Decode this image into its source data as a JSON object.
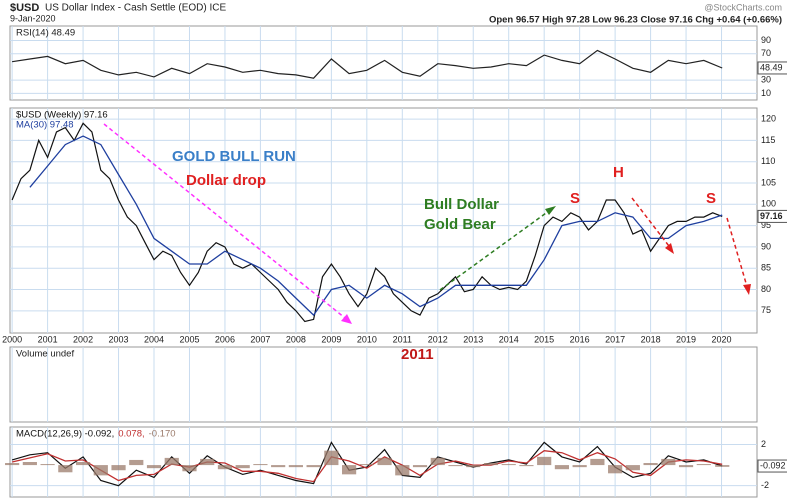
{
  "header": {
    "symbol": "$USD",
    "name": "US Dollar Index - Cash Settle (EOD) ICE",
    "date": "9-Jan-2020",
    "quote": "Open 96.57  High 97.28  Low 96.23  Close 97.16  Chg +0.64 (+0.66%)",
    "source": "@StockCharts.com"
  },
  "chart_data": [
    {
      "type": "line",
      "title": "RSI(14) 48.49",
      "ylim": [
        0,
        112
      ],
      "yticks": [
        10,
        30,
        70,
        90
      ],
      "grid": true,
      "series": [
        {
          "name": "RSI(14)",
          "color": "#222222",
          "x": [
            2000,
            2000.5,
            2001,
            2001.5,
            2002,
            2002.5,
            2003,
            2003.5,
            2004,
            2004.5,
            2005,
            2005.5,
            2006,
            2006.5,
            2007,
            2007.5,
            2008,
            2008.5,
            2009,
            2009.5,
            2010,
            2010.5,
            2011,
            2011.5,
            2012,
            2012.5,
            2013,
            2013.5,
            2014,
            2014.5,
            2015,
            2015.5,
            2016,
            2016.5,
            2017,
            2017.5,
            2018,
            2018.5,
            2019,
            2019.5,
            2020.02
          ],
          "values": [
            58,
            62,
            66,
            55,
            60,
            45,
            38,
            42,
            35,
            48,
            40,
            55,
            50,
            42,
            45,
            40,
            38,
            33,
            62,
            40,
            45,
            60,
            42,
            36,
            55,
            52,
            48,
            50,
            55,
            52,
            68,
            60,
            55,
            75,
            62,
            48,
            42,
            60,
            55,
            60,
            48.49
          ]
        }
      ]
    },
    {
      "type": "line",
      "xlim": [
        1999.94,
        2021.0
      ],
      "xticks": [
        2000,
        2001,
        2002,
        2003,
        2004,
        2005,
        2006,
        2007,
        2008,
        2009,
        2010,
        2011,
        2012,
        2013,
        2014,
        2015,
        2016,
        2017,
        2018,
        2019,
        2020
      ],
      "ylim": [
        69.8,
        122.6
      ],
      "yticks": [
        75,
        80,
        85,
        90,
        95,
        100,
        105,
        110,
        115,
        120
      ],
      "grid": true,
      "series": [
        {
          "name": "$USD (Weekly) 97.16",
          "color": "#111111",
          "x": [
            2000,
            2000.25,
            2000.5,
            2000.75,
            2001,
            2001.25,
            2001.5,
            2001.75,
            2002,
            2002.25,
            2002.5,
            2002.75,
            2003,
            2003.25,
            2003.5,
            2003.75,
            2004,
            2004.25,
            2004.5,
            2004.75,
            2005,
            2005.25,
            2005.5,
            2005.75,
            2006,
            2006.25,
            2006.5,
            2006.75,
            2007,
            2007.25,
            2007.5,
            2007.75,
            2008,
            2008.25,
            2008.5,
            2008.75,
            2009,
            2009.25,
            2009.5,
            2009.75,
            2010,
            2010.25,
            2010.5,
            2010.75,
            2011,
            2011.25,
            2011.5,
            2011.75,
            2012,
            2012.25,
            2012.5,
            2012.75,
            2013,
            2013.25,
            2013.5,
            2013.75,
            2014,
            2014.25,
            2014.5,
            2014.75,
            2015,
            2015.25,
            2015.5,
            2015.75,
            2016,
            2016.25,
            2016.5,
            2016.75,
            2017,
            2017.25,
            2017.5,
            2017.75,
            2018,
            2018.25,
            2018.5,
            2018.75,
            2019,
            2019.25,
            2019.5,
            2019.75,
            2020.02
          ],
          "values": [
            101,
            106,
            108,
            115,
            111,
            117,
            118,
            115,
            119,
            117,
            108,
            106,
            101,
            97,
            95,
            91,
            87,
            89,
            88,
            84,
            81,
            84,
            89,
            91,
            90,
            86,
            85,
            86,
            84,
            82,
            80,
            77,
            75,
            72.5,
            73,
            83,
            86,
            83,
            79,
            76,
            79,
            85,
            83,
            79,
            77,
            75,
            74,
            78,
            79,
            81,
            83,
            79.5,
            80,
            83,
            81,
            80,
            80.5,
            80,
            82,
            88,
            95,
            97,
            96,
            98,
            97,
            94,
            96,
            101,
            101,
            98,
            93,
            94,
            89,
            92,
            95,
            96,
            96,
            97,
            97,
            98,
            97.16
          ]
        },
        {
          "name": "MA(30) 97.48",
          "color": "#1f3f9f",
          "x": [
            2000.5,
            2001,
            2001.5,
            2002,
            2002.5,
            2003,
            2003.5,
            2004,
            2004.5,
            2005,
            2005.5,
            2006,
            2006.5,
            2007,
            2007.5,
            2008,
            2008.5,
            2009,
            2009.5,
            2010,
            2010.5,
            2011,
            2011.5,
            2012,
            2012.5,
            2013,
            2013.5,
            2014,
            2014.5,
            2015,
            2015.5,
            2016,
            2016.5,
            2017,
            2017.5,
            2018,
            2018.5,
            2019,
            2019.5,
            2020.02
          ],
          "values": [
            104,
            109,
            114,
            116,
            114,
            107,
            100,
            92,
            89,
            86,
            86,
            89,
            87,
            85,
            82,
            78,
            74,
            80,
            81,
            78,
            81,
            79,
            76,
            78,
            81,
            81,
            81,
            81,
            81,
            87,
            95,
            96,
            96,
            98,
            97,
            92,
            92,
            95,
            96,
            97.48
          ]
        }
      ],
      "annotations": [
        "GOLD BULL RUN",
        "Dollar drop",
        "Bull Dollar",
        "Gold Bear",
        "S",
        "H",
        "S",
        "2011"
      ]
    },
    {
      "type": "line",
      "title": "Volume undef",
      "series": []
    },
    {
      "type": "line",
      "ylim": [
        -3.1,
        3.7
      ],
      "yticks": [
        -2,
        2
      ],
      "grid": true,
      "series": [
        {
          "name": "MACD(12,26,9) -0.092,",
          "color": "#111111",
          "x": [
            2000,
            2000.5,
            2001,
            2001.5,
            2002,
            2002.5,
            2003,
            2003.5,
            2004,
            2004.5,
            2005,
            2005.5,
            2006,
            2006.5,
            2007,
            2007.5,
            2008,
            2008.5,
            2009,
            2009.5,
            2010,
            2010.5,
            2011,
            2011.5,
            2012,
            2012.5,
            2013,
            2013.5,
            2014,
            2014.5,
            2015,
            2015.5,
            2016,
            2016.5,
            2017,
            2017.5,
            2018,
            2018.5,
            2019,
            2019.5,
            2020.02
          ],
          "values": [
            0.5,
            1,
            1.2,
            -0.3,
            0.8,
            -1.5,
            -2,
            -0.5,
            -1.2,
            0.8,
            -0.8,
            0.9,
            -0.2,
            -0.9,
            -0.5,
            -1,
            -1.5,
            -1.8,
            2.2,
            -0.5,
            -0.2,
            1.5,
            -1,
            -1.2,
            0.8,
            0.3,
            -0.2,
            0.2,
            0.5,
            0.1,
            2.2,
            0.8,
            0.3,
            1.8,
            -0.2,
            -1.2,
            -0.8,
            0.9,
            0.3,
            0.5,
            -0.092
          ]
        },
        {
          "name": "0.078,",
          "color": "#c03030",
          "x": [
            2000,
            2000.5,
            2001,
            2001.5,
            2002,
            2002.5,
            2003,
            2003.5,
            2004,
            2004.5,
            2005,
            2005.5,
            2006,
            2006.5,
            2007,
            2007.5,
            2008,
            2008.5,
            2009,
            2009.5,
            2010,
            2010.5,
            2011,
            2011.5,
            2012,
            2012.5,
            2013,
            2013.5,
            2014,
            2014.5,
            2015,
            2015.5,
            2016,
            2016.5,
            2017,
            2017.5,
            2018,
            2018.5,
            2019,
            2019.5,
            2020.02
          ],
          "values": [
            0.3,
            0.7,
            1.1,
            0.4,
            0.5,
            -0.5,
            -1.5,
            -1,
            -0.9,
            0.1,
            -0.2,
            0.3,
            0.2,
            -0.6,
            -0.6,
            -0.8,
            -1.3,
            -1.6,
            0.8,
            0.4,
            -0.3,
            0.8,
            0,
            -1,
            0.1,
            0.4,
            0,
            0,
            0.4,
            0.2,
            1.4,
            1.2,
            0.5,
            1.2,
            0.6,
            -0.7,
            -1,
            0.3,
            0.5,
            0.4,
            0.078
          ]
        },
        {
          "name": "-0.170",
          "color": "#9b7b6b",
          "style": "bar",
          "x": [
            2000,
            2000.5,
            2001,
            2001.5,
            2002,
            2002.5,
            2003,
            2003.5,
            2004,
            2004.5,
            2005,
            2005.5,
            2006,
            2006.5,
            2007,
            2007.5,
            2008,
            2008.5,
            2009,
            2009.5,
            2010,
            2010.5,
            2011,
            2011.5,
            2012,
            2012.5,
            2013,
            2013.5,
            2014,
            2014.5,
            2015,
            2015.5,
            2016,
            2016.5,
            2017,
            2017.5,
            2018,
            2018.5,
            2019,
            2019.5,
            2020.02
          ],
          "values": [
            0.2,
            0.3,
            0.1,
            -0.7,
            0.3,
            -1,
            -0.5,
            0.5,
            -0.3,
            0.7,
            -0.6,
            0.6,
            -0.4,
            -0.3,
            0.1,
            -0.2,
            -0.2,
            -0.2,
            1.4,
            -0.9,
            0.1,
            0.7,
            -1,
            -0.2,
            0.7,
            -0.1,
            -0.2,
            0.2,
            0.1,
            -0.1,
            0.8,
            -0.4,
            -0.2,
            0.6,
            -0.8,
            -0.5,
            0.2,
            0.6,
            -0.2,
            0.1,
            -0.17
          ]
        }
      ]
    }
  ]
}
